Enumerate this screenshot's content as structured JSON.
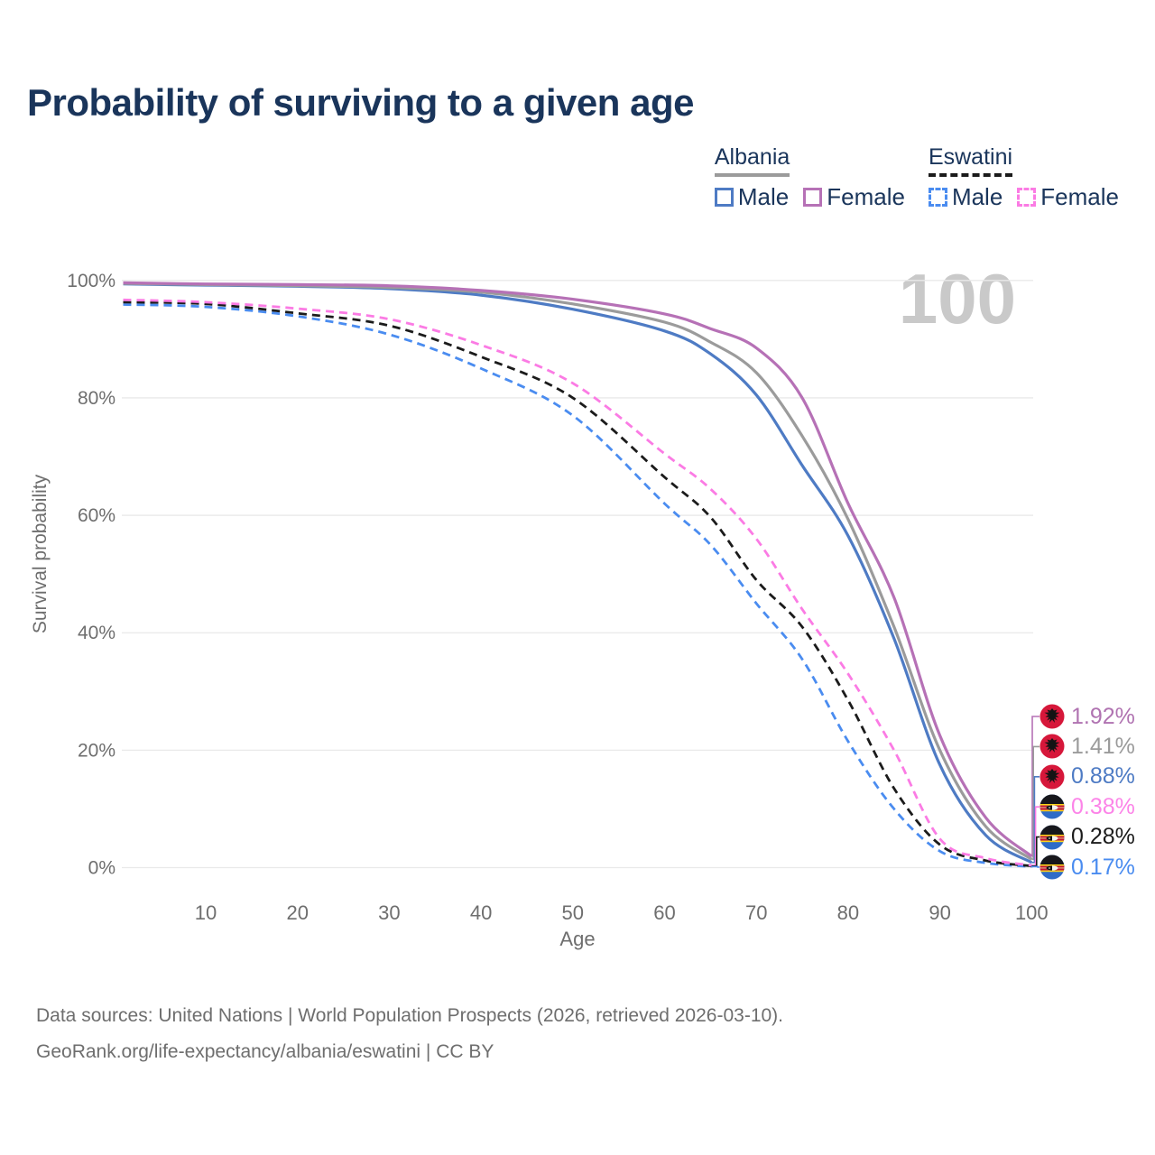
{
  "title": "Probability of surviving to a given age",
  "watermark_age": "100",
  "colors": {
    "title": "#1A355B",
    "axis_text": "#6E6E6E",
    "grid": "#E9E9E9",
    "watermark": "#C9C9C9",
    "background": "#FFFFFF",
    "legend_text": "#1A355B"
  },
  "legend": {
    "groups": [
      {
        "country": "Albania",
        "line_style": "solid",
        "line_color": "#9B9B9B",
        "items": [
          {
            "label": "Male",
            "color": "#4E7BC4",
            "dashed": false
          },
          {
            "label": "Female",
            "color": "#B671B6",
            "dashed": false
          }
        ]
      },
      {
        "country": "Eswatini",
        "line_style": "dashed",
        "line_color": "#1B1B1B",
        "items": [
          {
            "label": "Male",
            "color": "#4A8CF0",
            "dashed": true
          },
          {
            "label": "Female",
            "color": "#FB7BE4",
            "dashed": true
          }
        ]
      }
    ]
  },
  "chart_data": {
    "type": "line",
    "title": "Probability of surviving to a given age",
    "xlabel": "Age",
    "ylabel": "Survival probability",
    "xlim": [
      0,
      104
    ],
    "ylim": [
      0,
      100
    ],
    "xticks": [
      10,
      20,
      30,
      40,
      50,
      60,
      70,
      80,
      90,
      100
    ],
    "ytick_values": [
      0,
      20,
      40,
      60,
      80,
      100
    ],
    "ytick_labels": [
      "0%",
      "20%",
      "40%",
      "60%",
      "80%",
      "100%"
    ],
    "grid": "horizontal",
    "legend_position": "top-right",
    "x": [
      1,
      10,
      20,
      30,
      40,
      50,
      60,
      65,
      70,
      75,
      80,
      85,
      90,
      95,
      100
    ],
    "series": [
      {
        "name": "Albania Female",
        "country": "Albania",
        "sex": "Female",
        "line": "solid",
        "color": "#B671B6",
        "flag": "albania",
        "end_label": "1.92%",
        "end_label_color": "#B073B1",
        "values": [
          99.6,
          99.4,
          99.3,
          99.1,
          98.3,
          96.8,
          94.3,
          91.8,
          88.5,
          80.0,
          62.0,
          46.0,
          22.5,
          8.5,
          1.92
        ]
      },
      {
        "name": "Albania Both sexes",
        "country": "Albania",
        "sex": "Both",
        "line": "solid",
        "color": "#9B9B9B",
        "flag": "albania",
        "end_label": "1.41%",
        "end_label_color": "#9B9B9B",
        "values": [
          99.5,
          99.3,
          99.1,
          98.8,
          98.0,
          96.0,
          92.9,
          89.5,
          84.3,
          73.5,
          59.3,
          41.0,
          20.0,
          7.0,
          1.41
        ]
      },
      {
        "name": "Albania Male",
        "country": "Albania",
        "sex": "Male",
        "line": "solid",
        "color": "#4E7BC4",
        "flag": "albania",
        "end_label": "0.88%",
        "end_label_color": "#4E7BC4",
        "values": [
          99.4,
          99.2,
          99.0,
          98.6,
          97.5,
          95.1,
          91.4,
          87.5,
          80.5,
          68.5,
          56.5,
          39.0,
          17.5,
          5.5,
          0.88
        ]
      },
      {
        "name": "Eswatini Female",
        "country": "Eswatini",
        "sex": "Female",
        "line": "dashed",
        "color": "#FB7BE4",
        "flag": "eswatini",
        "end_label": "0.38%",
        "end_label_color": "#FC84E8",
        "values": [
          96.7,
          96.3,
          95.2,
          93.4,
          89.0,
          82.5,
          70.5,
          64.5,
          56.0,
          44.0,
          33.0,
          20.0,
          4.9,
          1.6,
          0.38
        ]
      },
      {
        "name": "Eswatini Both sexes",
        "country": "Eswatini",
        "sex": "Both",
        "line": "dashed",
        "color": "#1B1B1B",
        "flag": "eswatini",
        "end_label": "0.28%",
        "end_label_color": "#1B1B1B",
        "values": [
          96.3,
          96.0,
          94.4,
          92.3,
          87.0,
          80.0,
          66.5,
          59.7,
          49.0,
          41.0,
          28.5,
          13.5,
          3.9,
          1.2,
          0.28
        ]
      },
      {
        "name": "Eswatini Male",
        "country": "Eswatini",
        "sex": "Male",
        "line": "dashed",
        "color": "#4A8CF0",
        "flag": "eswatini",
        "end_label": "0.17%",
        "end_label_color": "#4A8CF0",
        "values": [
          95.9,
          95.5,
          93.9,
          90.8,
          85.0,
          77.0,
          62.0,
          55.0,
          45.0,
          35.5,
          21.5,
          10.0,
          2.8,
          0.8,
          0.17
        ]
      }
    ]
  },
  "footer": {
    "line1": "Data sources: United Nations | World Population Prospects (2026, retrieved 2026-03-10).",
    "line2": "GeoRank.org/life-expectancy/albania/eswatini | CC BY"
  }
}
